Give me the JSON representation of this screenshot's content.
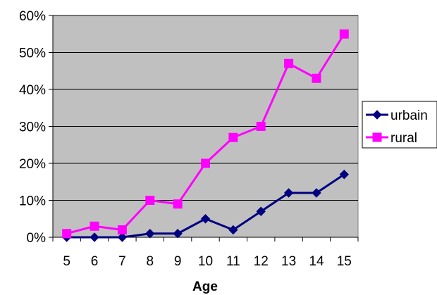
{
  "chart_data": {
    "type": "line",
    "title": "",
    "xlabel": "Age",
    "ylabel": "",
    "categories": [
      "5",
      "6",
      "7",
      "8",
      "9",
      "10",
      "11",
      "12",
      "13",
      "14",
      "15"
    ],
    "ylim": [
      0,
      60
    ],
    "yticks": [
      "0%",
      "10%",
      "20%",
      "30%",
      "40%",
      "50%",
      "60%"
    ],
    "grid": true,
    "plot_background": "#c0c0c0",
    "legend_position": "right",
    "series": [
      {
        "name": "urbain",
        "values": [
          0,
          0,
          0,
          1,
          1,
          5,
          2,
          7,
          12,
          12,
          17
        ],
        "color": "#000080",
        "marker": "diamond"
      },
      {
        "name": "rural",
        "values": [
          1,
          3,
          2,
          10,
          9,
          20,
          27,
          30,
          47,
          43,
          55
        ],
        "color": "#ff00ff",
        "marker": "square"
      }
    ]
  }
}
